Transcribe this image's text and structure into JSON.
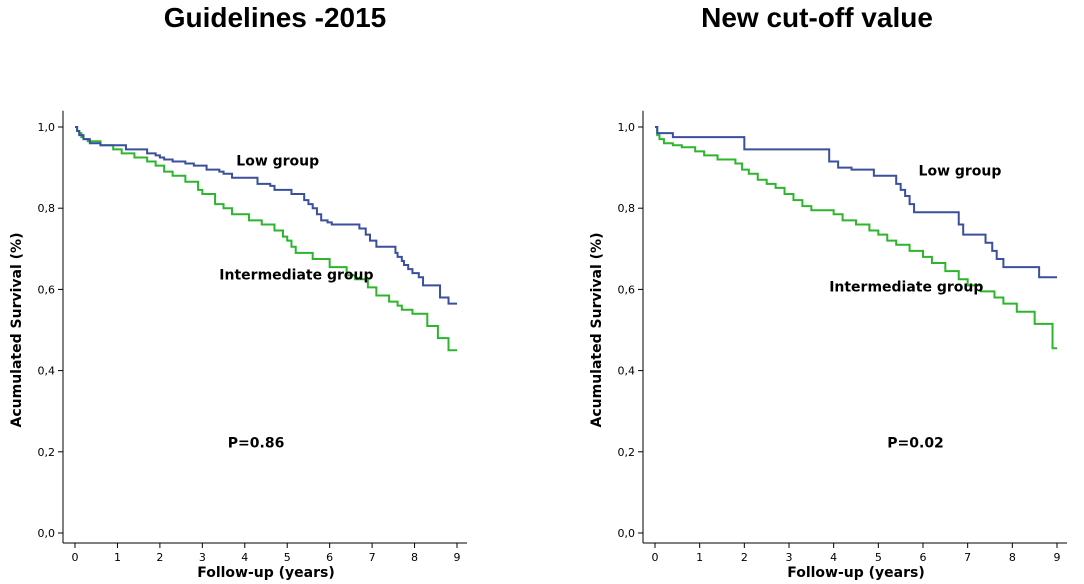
{
  "chart_data": [
    {
      "type": "line",
      "step": true,
      "title": "Guidelines -2015",
      "xlabel": "Follow-up (years)",
      "ylabel": "Acumulated Survival (%)",
      "xlim": [
        0,
        9
      ],
      "ylim": [
        0,
        1
      ],
      "xticks": [
        0,
        1,
        2,
        3,
        4,
        5,
        6,
        7,
        8,
        9
      ],
      "yticks": [
        0,
        0.2,
        0.4,
        0.6,
        0.8,
        1.0
      ],
      "ytick_labels": [
        "0,0",
        "0,2",
        "0,4",
        "0,6",
        "0,8",
        "1,0"
      ],
      "grid": false,
      "series": [
        {
          "name": "Low group",
          "color": "#3a4f9e",
          "x": [
            0,
            0.05,
            0.1,
            0.2,
            0.35,
            0.6,
            1.2,
            1.7,
            1.9,
            2.0,
            2.1,
            2.3,
            2.6,
            2.8,
            3.1,
            3.4,
            3.5,
            3.7,
            4.3,
            4.6,
            4.7,
            5.1,
            5.4,
            5.5,
            5.6,
            5.7,
            5.8,
            5.95,
            6.05,
            6.7,
            6.85,
            6.95,
            7.1,
            7.55,
            7.6,
            7.7,
            7.75,
            7.85,
            7.95,
            8.1,
            8.2,
            8.6,
            8.8
          ],
          "y": [
            1.0,
            0.99,
            0.98,
            0.97,
            0.96,
            0.955,
            0.945,
            0.935,
            0.93,
            0.925,
            0.92,
            0.915,
            0.91,
            0.905,
            0.895,
            0.89,
            0.885,
            0.875,
            0.86,
            0.855,
            0.845,
            0.835,
            0.82,
            0.81,
            0.8,
            0.785,
            0.77,
            0.765,
            0.76,
            0.75,
            0.735,
            0.72,
            0.705,
            0.69,
            0.68,
            0.67,
            0.66,
            0.65,
            0.64,
            0.63,
            0.61,
            0.58,
            0.565
          ]
        },
        {
          "name": "Intermediate group",
          "color": "#2db52d",
          "x": [
            0,
            0.05,
            0.1,
            0.15,
            0.2,
            0.3,
            0.6,
            0.9,
            1.1,
            1.4,
            1.7,
            1.9,
            2.1,
            2.3,
            2.6,
            2.9,
            3.0,
            3.3,
            3.5,
            3.7,
            4.1,
            4.4,
            4.7,
            4.9,
            5.0,
            5.1,
            5.2,
            5.6,
            6.0,
            6.4,
            6.6,
            6.9,
            7.1,
            7.4,
            7.6,
            7.7,
            7.95,
            8.3,
            8.55,
            8.8
          ],
          "y": [
            1.0,
            0.99,
            0.985,
            0.975,
            0.97,
            0.965,
            0.955,
            0.945,
            0.935,
            0.925,
            0.915,
            0.905,
            0.89,
            0.88,
            0.865,
            0.845,
            0.835,
            0.81,
            0.8,
            0.785,
            0.77,
            0.76,
            0.745,
            0.73,
            0.72,
            0.705,
            0.69,
            0.675,
            0.655,
            0.635,
            0.625,
            0.605,
            0.585,
            0.57,
            0.56,
            0.55,
            0.54,
            0.51,
            0.48,
            0.45
          ]
        }
      ],
      "annotations": [
        {
          "text": "Low group",
          "x": 3.8,
          "y": 0.905
        },
        {
          "text": "Intermediate group",
          "x": 3.4,
          "y": 0.625
        },
        {
          "text": "P=0.86",
          "x": 3.6,
          "y": 0.21
        }
      ]
    },
    {
      "type": "line",
      "step": true,
      "title": "New cut-off value",
      "xlabel": "Follow-up (years)",
      "ylabel": "Acumulated Survival (%)",
      "xlim": [
        0,
        9
      ],
      "ylim": [
        0,
        1
      ],
      "xticks": [
        0,
        1,
        2,
        3,
        4,
        5,
        6,
        7,
        8,
        9
      ],
      "yticks": [
        0,
        0.2,
        0.4,
        0.6,
        0.8,
        1.0
      ],
      "ytick_labels": [
        "0,0",
        "0,2",
        "0,4",
        "0,6",
        "0,8",
        "1,0"
      ],
      "grid": false,
      "series": [
        {
          "name": "Low group",
          "color": "#3a4f9e",
          "x": [
            0,
            0.05,
            0.4,
            2.0,
            3.9,
            4.1,
            4.4,
            4.9,
            5.4,
            5.5,
            5.6,
            5.7,
            5.8,
            6.0,
            6.8,
            6.9,
            7.4,
            7.55,
            7.65,
            7.8,
            8.6
          ],
          "y": [
            1.0,
            0.985,
            0.975,
            0.945,
            0.915,
            0.9,
            0.895,
            0.88,
            0.86,
            0.845,
            0.83,
            0.81,
            0.79,
            0.79,
            0.76,
            0.735,
            0.715,
            0.695,
            0.675,
            0.655,
            0.63
          ]
        },
        {
          "name": "Intermediate group",
          "color": "#2db52d",
          "x": [
            0,
            0.05,
            0.1,
            0.2,
            0.4,
            0.6,
            0.9,
            1.1,
            1.4,
            1.8,
            1.95,
            2.1,
            2.3,
            2.5,
            2.7,
            2.9,
            3.1,
            3.3,
            3.5,
            4.0,
            4.2,
            4.5,
            4.8,
            5.0,
            5.2,
            5.4,
            5.7,
            6.0,
            6.2,
            6.5,
            6.8,
            7.0,
            7.3,
            7.6,
            7.8,
            8.1,
            8.5,
            8.9
          ],
          "y": [
            1.0,
            0.98,
            0.97,
            0.96,
            0.955,
            0.95,
            0.94,
            0.93,
            0.92,
            0.91,
            0.895,
            0.885,
            0.87,
            0.86,
            0.85,
            0.835,
            0.82,
            0.805,
            0.795,
            0.785,
            0.77,
            0.76,
            0.745,
            0.735,
            0.72,
            0.71,
            0.695,
            0.68,
            0.665,
            0.645,
            0.625,
            0.61,
            0.595,
            0.58,
            0.565,
            0.545,
            0.515,
            0.455
          ]
        }
      ],
      "annotations": [
        {
          "text": "Low group",
          "x": 5.9,
          "y": 0.88
        },
        {
          "text": "Intermediate group",
          "x": 3.9,
          "y": 0.595
        },
        {
          "text": "P=0.02",
          "x": 5.2,
          "y": 0.21
        }
      ]
    }
  ]
}
